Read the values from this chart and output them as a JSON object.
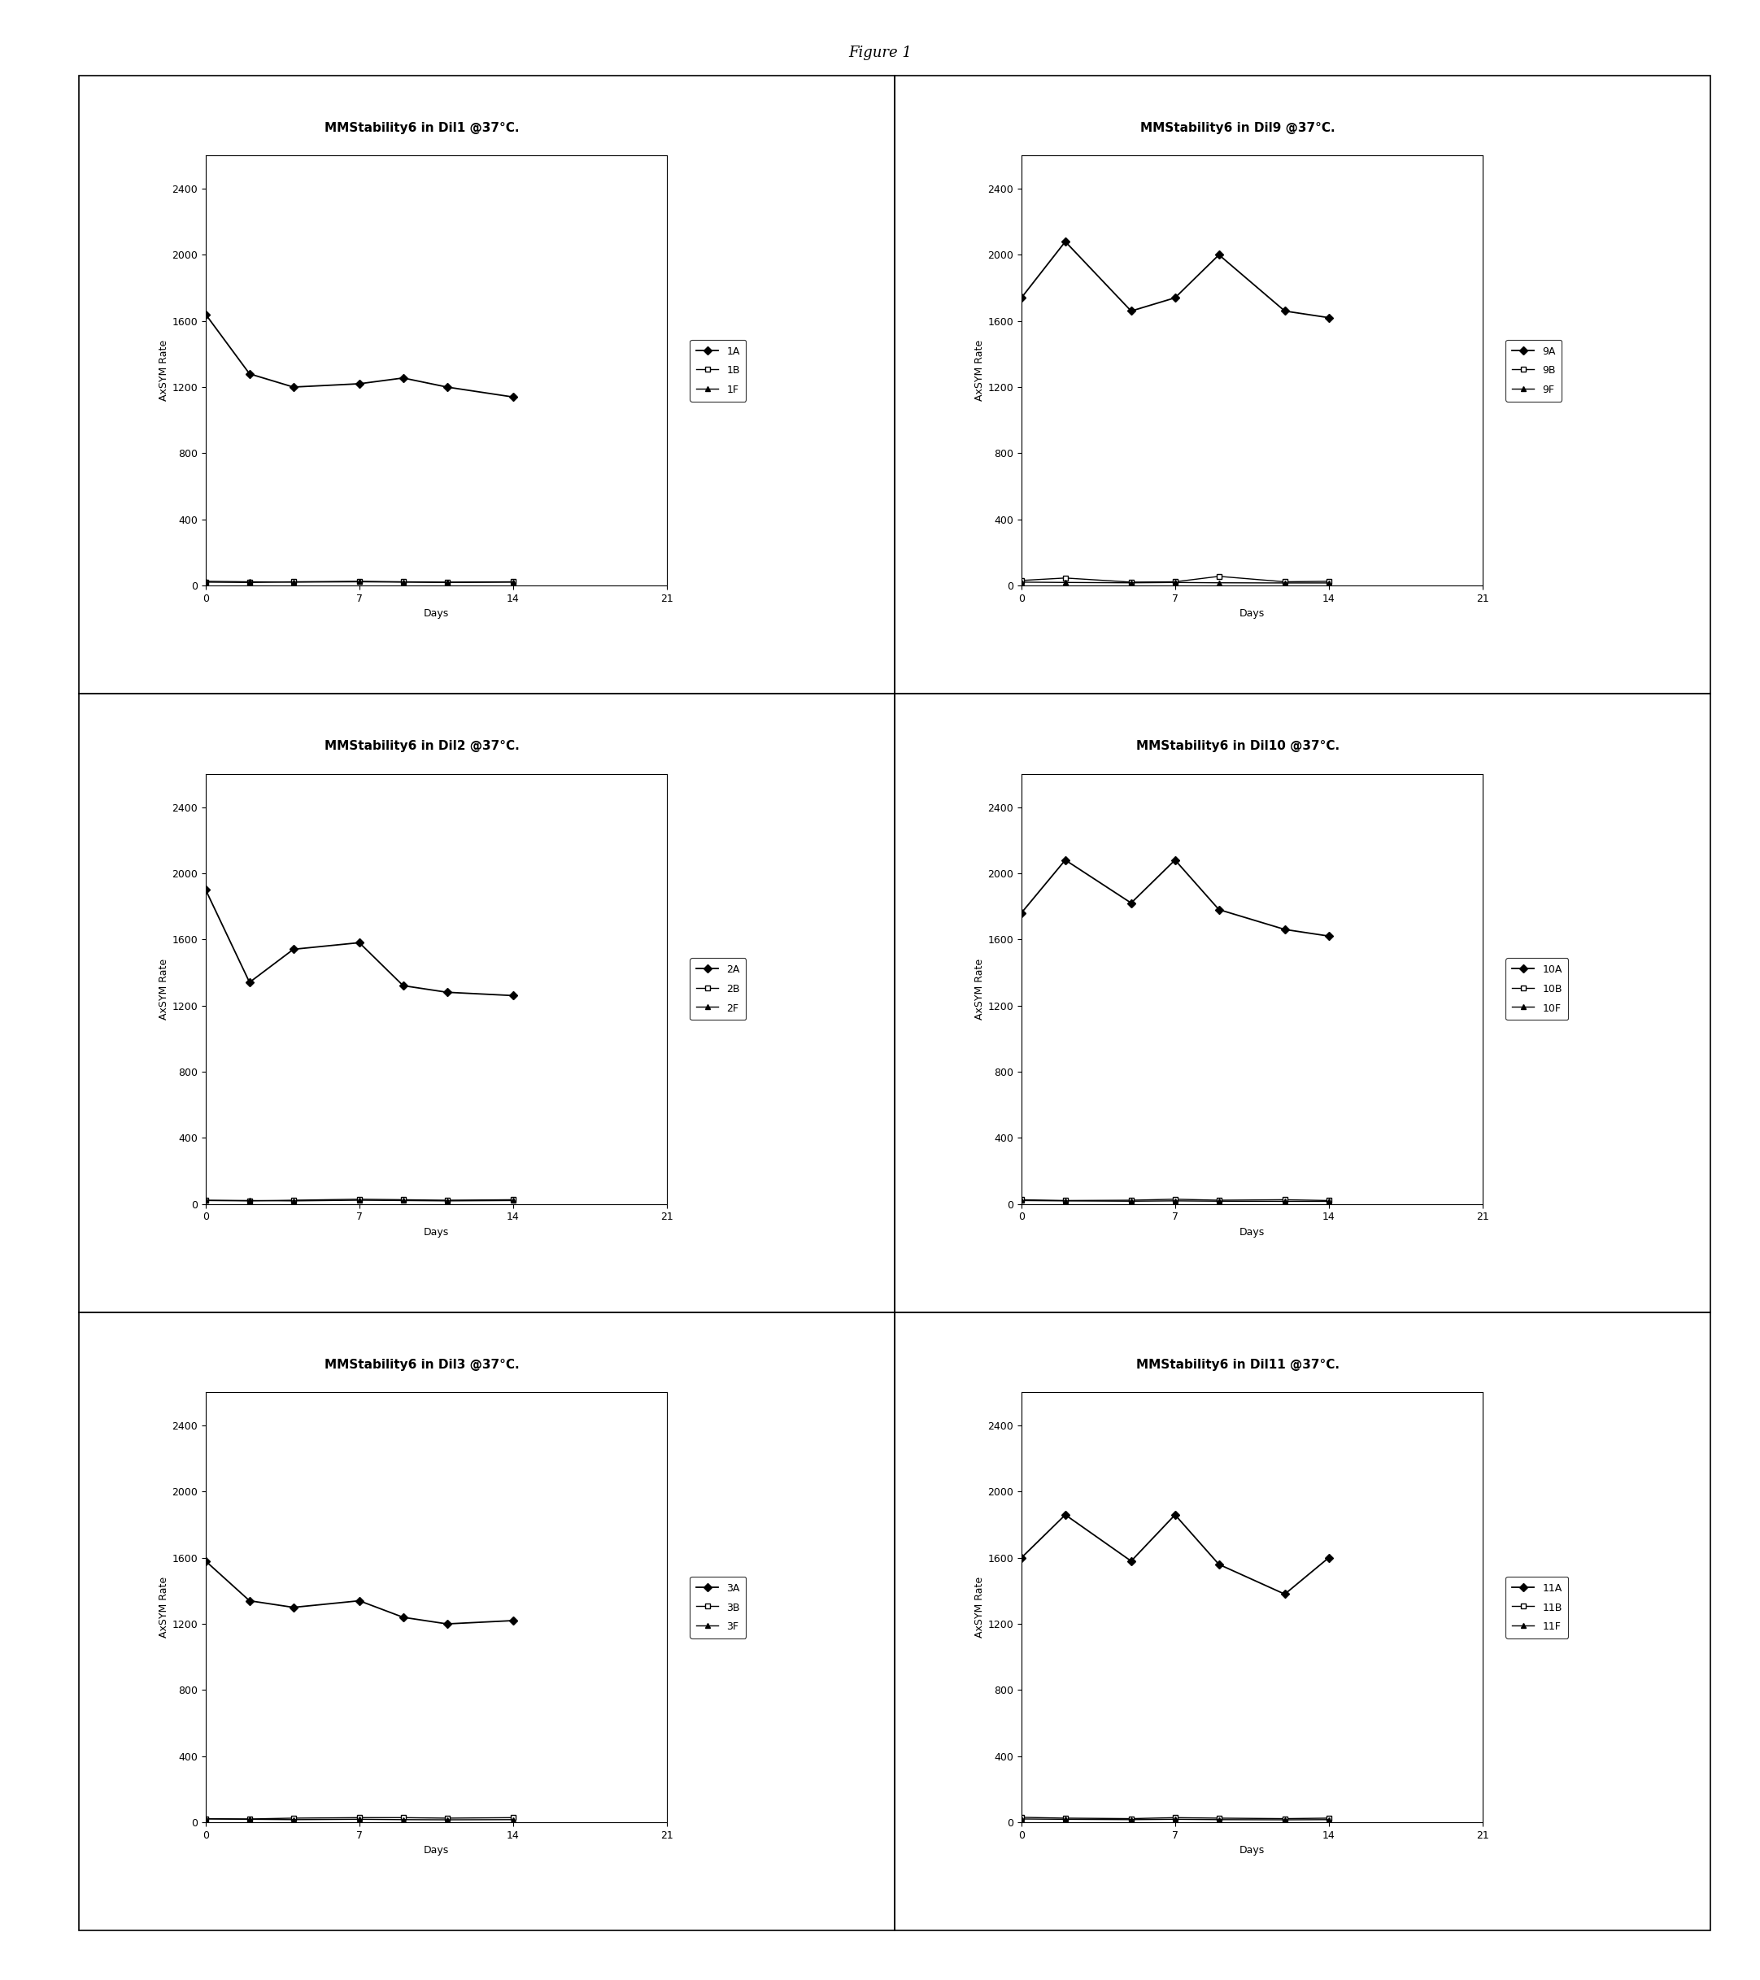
{
  "figure_title": "Figure 1",
  "plots": [
    {
      "title": "MMStability6 in Dil1 @37°C.",
      "legend_labels": [
        "1A",
        "1B",
        "1F"
      ],
      "series_A": {
        "x": [
          0,
          2,
          4,
          7,
          9,
          11,
          14
        ],
        "y": [
          1640,
          1280,
          1200,
          1220,
          1255,
          1200,
          1140
        ]
      },
      "series_B": {
        "x": [
          0,
          2,
          4,
          7,
          9,
          11,
          14
        ],
        "y": [
          20,
          18,
          22,
          25,
          22,
          20,
          22
        ]
      },
      "series_F": {
        "x": [
          0,
          2,
          4,
          7,
          9,
          11,
          14
        ],
        "y": [
          25,
          22,
          20,
          22,
          20,
          18,
          20
        ]
      }
    },
    {
      "title": "MMStability6 in Dil9 @37°C.",
      "legend_labels": [
        "9A",
        "9B",
        "9F"
      ],
      "series_A": {
        "x": [
          0,
          2,
          5,
          7,
          9,
          12,
          14
        ],
        "y": [
          1740,
          2080,
          1660,
          1740,
          2000,
          1660,
          1620
        ]
      },
      "series_B": {
        "x": [
          0,
          2,
          5,
          7,
          9,
          12,
          14
        ],
        "y": [
          30,
          45,
          20,
          22,
          55,
          22,
          25
        ]
      },
      "series_F": {
        "x": [
          0,
          2,
          5,
          7,
          9,
          12,
          14
        ],
        "y": [
          20,
          18,
          16,
          18,
          16,
          15,
          15
        ]
      }
    },
    {
      "title": "MMStability6 in Dil2 @37°C.",
      "legend_labels": [
        "2A",
        "2B",
        "2F"
      ],
      "series_A": {
        "x": [
          0,
          2,
          4,
          7,
          9,
          11,
          14
        ],
        "y": [
          1900,
          1340,
          1540,
          1580,
          1320,
          1280,
          1260
        ]
      },
      "series_B": {
        "x": [
          0,
          2,
          4,
          7,
          9,
          11,
          14
        ],
        "y": [
          20,
          18,
          22,
          28,
          25,
          22,
          25
        ]
      },
      "series_F": {
        "x": [
          0,
          2,
          4,
          7,
          9,
          11,
          14
        ],
        "y": [
          22,
          20,
          18,
          22,
          20,
          18,
          20
        ]
      }
    },
    {
      "title": "MMStability6 in Dil10 @37°C.",
      "legend_labels": [
        "10A",
        "10B",
        "10F"
      ],
      "series_A": {
        "x": [
          0,
          2,
          5,
          7,
          9,
          12,
          14
        ],
        "y": [
          1760,
          2080,
          1820,
          2080,
          1780,
          1660,
          1620
        ]
      },
      "series_B": {
        "x": [
          0,
          2,
          5,
          7,
          9,
          12,
          14
        ],
        "y": [
          25,
          20,
          22,
          28,
          22,
          25,
          20
        ]
      },
      "series_F": {
        "x": [
          0,
          2,
          5,
          7,
          9,
          12,
          14
        ],
        "y": [
          20,
          18,
          16,
          18,
          16,
          15,
          15
        ]
      }
    },
    {
      "title": "MMStability6 in Dil3 @37°C.",
      "legend_labels": [
        "3A",
        "3B",
        "3F"
      ],
      "series_A": {
        "x": [
          0,
          2,
          4,
          7,
          9,
          11,
          14
        ],
        "y": [
          1580,
          1340,
          1300,
          1340,
          1240,
          1200,
          1220
        ]
      },
      "series_B": {
        "x": [
          0,
          2,
          4,
          7,
          9,
          11,
          14
        ],
        "y": [
          22,
          20,
          25,
          28,
          28,
          25,
          28
        ]
      },
      "series_F": {
        "x": [
          0,
          2,
          4,
          7,
          9,
          11,
          14
        ],
        "y": [
          20,
          18,
          16,
          18,
          16,
          15,
          16
        ]
      }
    },
    {
      "title": "MMStability6 in Dil11 @37°C.",
      "legend_labels": [
        "11A",
        "11B",
        "11F"
      ],
      "series_A": {
        "x": [
          0,
          2,
          5,
          7,
          9,
          12,
          14
        ],
        "y": [
          1600,
          1860,
          1580,
          1860,
          1560,
          1380,
          1600
        ]
      },
      "series_B": {
        "x": [
          0,
          2,
          5,
          7,
          9,
          12,
          14
        ],
        "y": [
          30,
          25,
          22,
          28,
          25,
          22,
          25
        ]
      },
      "series_F": {
        "x": [
          0,
          2,
          5,
          7,
          9,
          12,
          14
        ],
        "y": [
          20,
          18,
          16,
          18,
          16,
          15,
          16
        ]
      }
    }
  ],
  "xlim": [
    0,
    21
  ],
  "ylim": [
    0,
    2600
  ],
  "xticks": [
    0,
    7,
    14,
    21
  ],
  "yticks": [
    0,
    400,
    800,
    1200,
    1600,
    2000,
    2400
  ],
  "xlabel": "Days",
  "ylabel": "AxSYM Rate",
  "background_color": "#ffffff",
  "title_fontsize": 11,
  "axis_label_fontsize": 9,
  "tick_fontsize": 9,
  "legend_fontsize": 9
}
